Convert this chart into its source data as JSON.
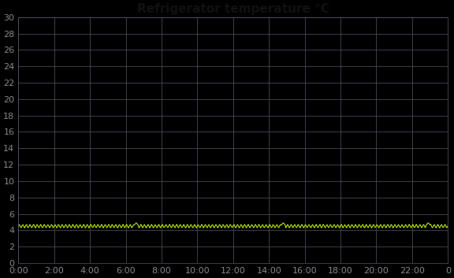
{
  "title": "Refrigerator temperature °C",
  "background_color": "#000000",
  "plot_bg_color": "#000000",
  "line_color": "#ccff00",
  "grid_color": "#555566",
  "text_color": "#cccccc",
  "title_color": "#000000",
  "ylim": [
    0,
    30
  ],
  "ytick_step": 2,
  "xlim_hours": [
    0,
    24
  ],
  "xtick_step_hours": 2,
  "base_temp": 4.5,
  "num_points": 1440,
  "title_fontsize": 11,
  "tick_fontsize": 8,
  "line_width": 0.7
}
